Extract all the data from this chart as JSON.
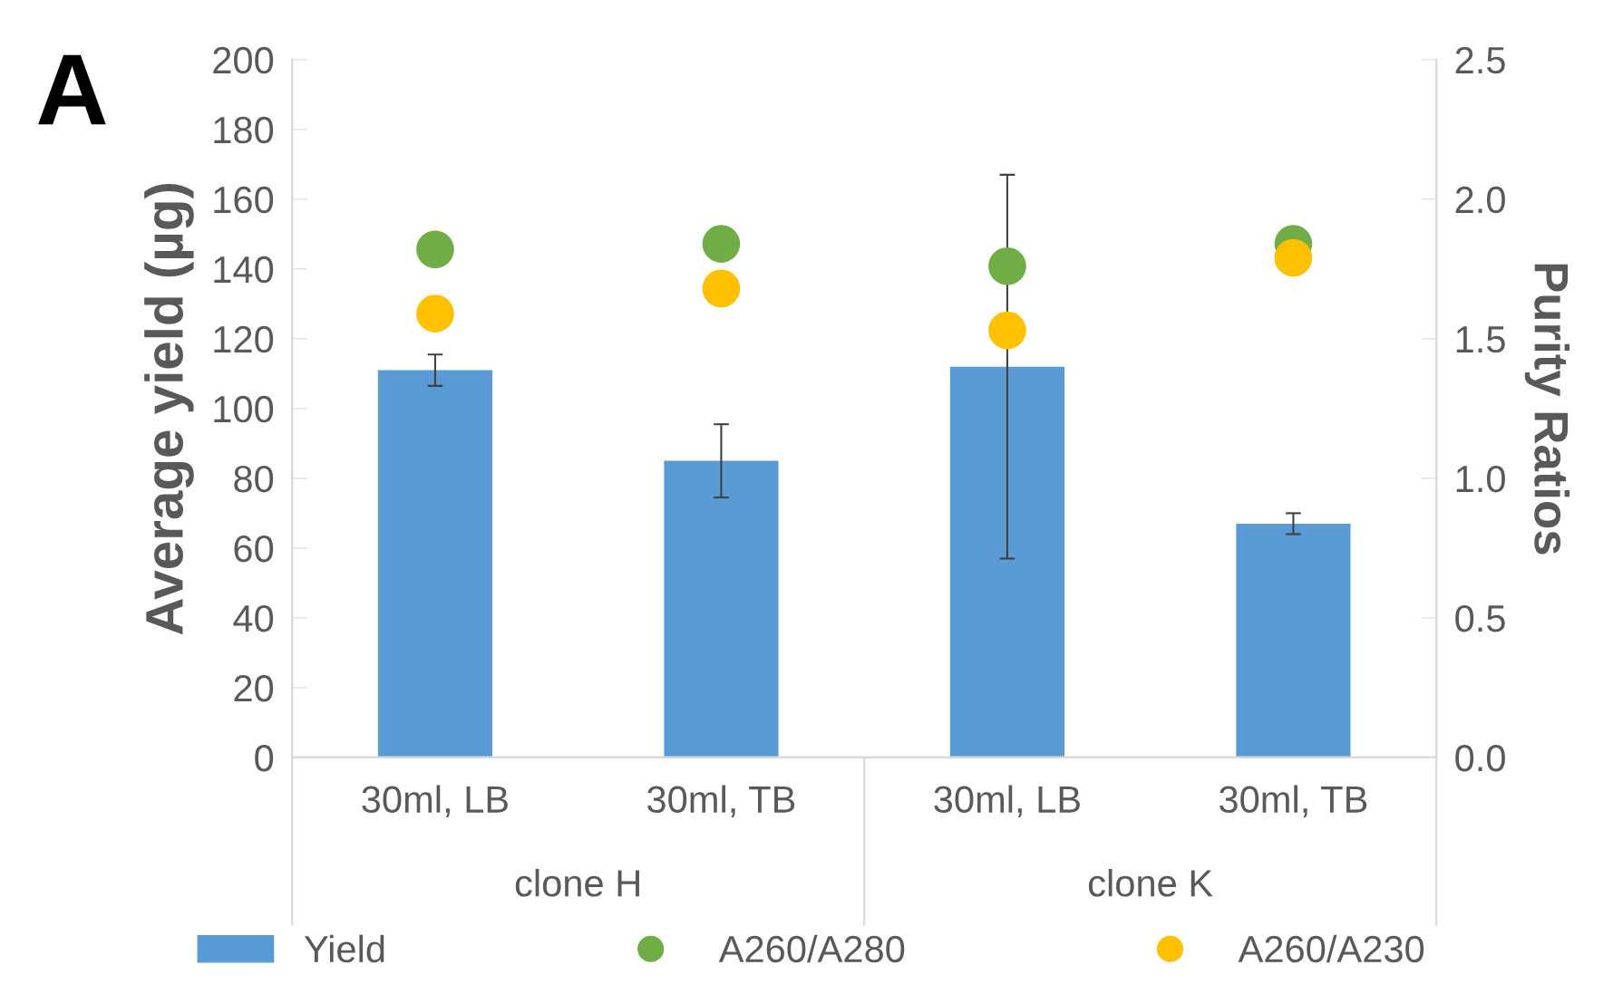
{
  "chart_data": {
    "type": "bar",
    "ylabel": "Average yield (µg)",
    "y2label": "Purity Ratios",
    "categories": [
      "30ml, LB",
      "30ml, TB",
      "30ml, LB",
      "30ml, TB"
    ],
    "series": [
      {
        "name": "Yield",
        "color": "#5b9bd5",
        "values": [
          111,
          85,
          112,
          67
        ],
        "errors": [
          4.5,
          10.5,
          55,
          3
        ]
      },
      {
        "name": "A260/A280",
        "type": "scatter",
        "axis": "y2",
        "color": "#70ad47",
        "values": [
          1.82,
          1.84,
          1.76,
          1.84
        ]
      },
      {
        "name": "A260/A230",
        "type": "scatter",
        "axis": "y2",
        "color": "#ffc000",
        "values": [
          1.59,
          1.68,
          1.53,
          1.79
        ]
      }
    ],
    "ylim": [
      0,
      200
    ],
    "yticks": [
      0,
      20,
      40,
      60,
      80,
      100,
      120,
      140,
      160,
      180,
      200
    ],
    "y2lim": [
      0,
      2.5
    ],
    "y2ticks": [
      {
        "value": 0,
        "label": "0.0"
      },
      {
        "value": 0.5,
        "label": "0.5"
      },
      {
        "value": 1,
        "label": "1.0"
      },
      {
        "value": 1.5,
        "label": "1.5"
      },
      {
        "value": 2,
        "label": "2.0"
      },
      {
        "value": 2.5,
        "label": "2.5"
      }
    ],
    "marker": "circle",
    "grid": false,
    "legend": "bottom",
    "annotations": [
      "A",
      "clone H",
      "clone K"
    ]
  }
}
